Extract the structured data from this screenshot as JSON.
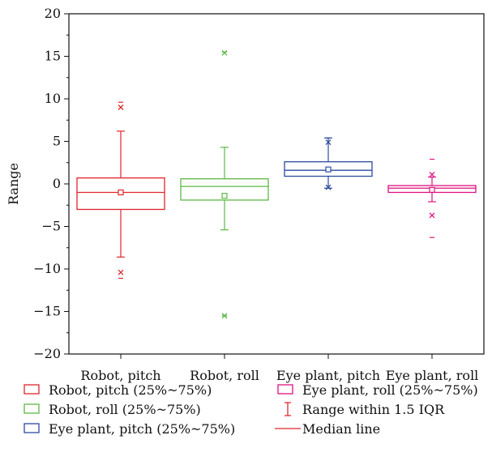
{
  "chart_data": {
    "type": "box",
    "title": "",
    "xlabel": "",
    "ylabel": "Range",
    "ylim": [
      -20,
      20
    ],
    "yticks": [
      -20,
      -15,
      -10,
      -5,
      0,
      5,
      10,
      15,
      20
    ],
    "grid": false,
    "legend_position": "bottom",
    "categories": [
      "Robot, pitch",
      "Robot, roll",
      "Eye plant, pitch",
      "Eye plant, roll"
    ],
    "series": [
      {
        "category": "Robot, pitch",
        "color": "#e0262b",
        "q1": -3.0,
        "median": -1.0,
        "q3": 0.7,
        "mean": -1.0,
        "whisker_low": -8.6,
        "whisker_high": 6.2,
        "min": -11.1,
        "max": 9.6,
        "outliers": [
          -10.4,
          9.0
        ]
      },
      {
        "category": "Robot, roll",
        "color": "#5cb845",
        "q1": -1.9,
        "median": -0.3,
        "q3": 0.6,
        "mean": -1.4,
        "whisker_low": -5.4,
        "whisker_high": 4.3,
        "min": -15.5,
        "max": 15.5,
        "outliers": [
          -15.5,
          15.4
        ]
      },
      {
        "category": "Eye plant, pitch",
        "color": "#2d4ba0",
        "q1": 0.9,
        "median": 1.6,
        "q3": 2.6,
        "mean": 1.7,
        "whisker_low": -0.5,
        "whisker_high": 5.4,
        "min": -0.5,
        "max": 5.4,
        "outliers": [
          -0.4,
          4.9
        ]
      },
      {
        "category": "Eye plant, roll",
        "color": "#e0117f",
        "q1": -1.0,
        "median": -0.5,
        "q3": -0.2,
        "mean": -0.7,
        "whisker_low": -2.1,
        "whisker_high": 0.8,
        "min": -6.3,
        "max": 2.9,
        "outliers": [
          -3.7,
          1.1
        ]
      }
    ],
    "legend": [
      {
        "label": "Robot, pitch (25%~75%)",
        "kind": "box",
        "color": "#e0262b"
      },
      {
        "label": "Robot, roll (25%~75%)",
        "kind": "box",
        "color": "#5cb845"
      },
      {
        "label": "Eye plant, pitch (25%~75%)",
        "kind": "box",
        "color": "#2d4ba0"
      },
      {
        "label": "Eye plant, roll (25%~75%)",
        "kind": "box",
        "color": "#e0117f"
      },
      {
        "label": "Range within 1.5 IQR",
        "kind": "range",
        "color": "#e0262b"
      },
      {
        "label": "Median line",
        "kind": "line",
        "color": "#e0262b"
      }
    ]
  }
}
